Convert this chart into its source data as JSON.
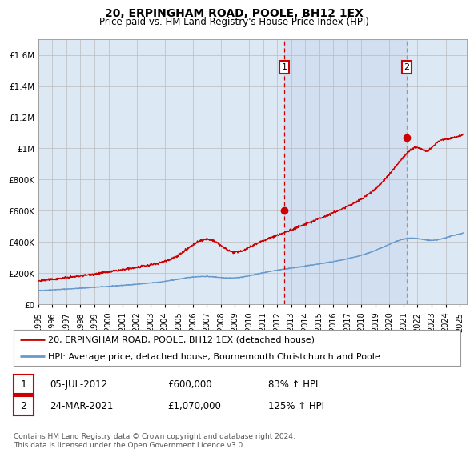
{
  "title": "20, ERPINGHAM ROAD, POOLE, BH12 1EX",
  "subtitle": "Price paid vs. HM Land Registry's House Price Index (HPI)",
  "x_start": 1995.0,
  "x_end": 2025.5,
  "y_min": 0,
  "y_max": 1700000,
  "y_ticks": [
    0,
    200000,
    400000,
    600000,
    800000,
    1000000,
    1200000,
    1400000,
    1600000
  ],
  "y_tick_labels": [
    "£0",
    "£200K",
    "£400K",
    "£600K",
    "£800K",
    "£1M",
    "£1.2M",
    "£1.4M",
    "£1.6M"
  ],
  "x_ticks": [
    1995,
    1996,
    1997,
    1998,
    1999,
    2000,
    2001,
    2002,
    2003,
    2004,
    2005,
    2006,
    2007,
    2008,
    2009,
    2010,
    2011,
    2012,
    2013,
    2014,
    2015,
    2016,
    2017,
    2018,
    2019,
    2020,
    2021,
    2022,
    2023,
    2024,
    2025
  ],
  "sale1_x": 2012.5,
  "sale1_y": 600000,
  "sale1_label": "1",
  "sale2_x": 2021.23,
  "sale2_y": 1070000,
  "sale2_label": "2",
  "red_line_color": "#cc0000",
  "blue_line_color": "#6699cc",
  "background_color": "#dce9f5",
  "plot_bg": "#ffffff",
  "grid_color": "#bbbbbb",
  "vline_color": "#cc0000",
  "vline2_color": "#999999",
  "legend_line1": "20, ERPINGHAM ROAD, POOLE, BH12 1EX (detached house)",
  "legend_line2": "HPI: Average price, detached house, Bournemouth Christchurch and Poole",
  "note1_label": "1",
  "note1_date": "05-JUL-2012",
  "note1_price": "£600,000",
  "note1_pct": "83% ↑ HPI",
  "note2_label": "2",
  "note2_date": "24-MAR-2021",
  "note2_price": "£1,070,000",
  "note2_pct": "125% ↑ HPI",
  "footer": "Contains HM Land Registry data © Crown copyright and database right 2024.\nThis data is licensed under the Open Government Licence v3.0.",
  "title_fontsize": 10,
  "subtitle_fontsize": 8.5,
  "axis_fontsize": 7.5,
  "legend_fontsize": 8,
  "note_fontsize": 8.5,
  "footer_fontsize": 6.5
}
